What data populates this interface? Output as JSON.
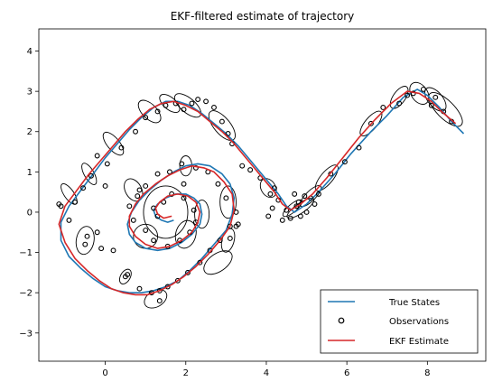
{
  "chart_data": {
    "type": "line",
    "title": "EKF-filtered estimate of trajectory",
    "xlabel": "",
    "ylabel": "",
    "xlim": [
      -1.65,
      9.45
    ],
    "ylim": [
      -3.7,
      4.55
    ],
    "xticks": [
      0,
      2,
      4,
      6,
      8
    ],
    "yticks": [
      -3,
      -2,
      -1,
      0,
      1,
      2,
      3,
      4
    ],
    "grid": false,
    "legend_position": "lower-right",
    "series": [
      {
        "name": "True States",
        "kind": "line",
        "color": "#1f77b4",
        "x": [
          8.9,
          8.6,
          8.3,
          8.0,
          7.75,
          7.4,
          7.0,
          6.6,
          6.1,
          5.7,
          5.3,
          5.0,
          4.7,
          4.5,
          4.3,
          4.05,
          3.8,
          3.55,
          3.3,
          3.0,
          2.7,
          2.4,
          2.1,
          1.8,
          1.5,
          1.2,
          0.9,
          0.6,
          0.3,
          0.0,
          -0.3,
          -0.6,
          -0.9,
          -1.1,
          -1.1,
          -0.9,
          -0.6,
          -0.3,
          0.0,
          0.3,
          0.6,
          0.9,
          1.2,
          1.5,
          1.8,
          2.1,
          2.4,
          2.7,
          3.0,
          3.15,
          3.2,
          3.1,
          2.9,
          2.6,
          2.3,
          2.0,
          1.7,
          1.4,
          1.1,
          0.85,
          0.65,
          0.55,
          0.6,
          0.75,
          1.0,
          1.3,
          1.6,
          1.9,
          2.15,
          2.35,
          2.4,
          2.35,
          2.2,
          2.0,
          1.75,
          1.5,
          1.3,
          1.2,
          1.25,
          1.4,
          1.55,
          1.7
        ],
        "y": [
          1.95,
          2.25,
          2.6,
          2.9,
          3.05,
          2.85,
          2.4,
          2.0,
          1.45,
          0.95,
          0.5,
          0.2,
          0.0,
          0.15,
          0.45,
          0.75,
          1.05,
          1.35,
          1.65,
          1.95,
          2.2,
          2.45,
          2.65,
          2.75,
          2.75,
          2.6,
          2.35,
          2.05,
          1.7,
          1.35,
          0.95,
          0.55,
          0.15,
          -0.25,
          -0.7,
          -1.1,
          -1.4,
          -1.65,
          -1.85,
          -1.95,
          -2.0,
          -2.0,
          -1.95,
          -1.85,
          -1.7,
          -1.45,
          -1.15,
          -0.8,
          -0.45,
          -0.05,
          0.35,
          0.7,
          0.95,
          1.15,
          1.2,
          1.15,
          1.0,
          0.8,
          0.55,
          0.3,
          0.0,
          -0.3,
          -0.55,
          -0.75,
          -0.9,
          -0.95,
          -0.9,
          -0.75,
          -0.55,
          -0.3,
          -0.05,
          0.2,
          0.35,
          0.45,
          0.45,
          0.35,
          0.2,
          0.05,
          -0.1,
          -0.2,
          -0.25,
          -0.2
        ]
      },
      {
        "name": "Observations",
        "kind": "scatter",
        "color": "#000000",
        "x": [
          8.6,
          8.2,
          8.4,
          8.1,
          7.9,
          7.65,
          7.5,
          7.3,
          6.9,
          6.6,
          6.3,
          5.95,
          5.6,
          5.3,
          5.1,
          5.2,
          5.0,
          4.85,
          4.75,
          4.6,
          4.5,
          4.4,
          4.3,
          4.15,
          4.05,
          4.2,
          4.1,
          3.85,
          3.6,
          3.4,
          3.15,
          3.05,
          2.9,
          2.7,
          2.5,
          2.3,
          2.15,
          1.95,
          1.75,
          1.5,
          1.3,
          1.0,
          0.75,
          0.4,
          0.05,
          -0.2,
          -0.35,
          -0.55,
          -0.75,
          -0.9,
          -1.1,
          -1.15,
          -0.45,
          -0.5,
          -0.1,
          0.2,
          0.5,
          0.55,
          0.85,
          1.15,
          1.35,
          1.55,
          1.8,
          2.05,
          2.35,
          2.6,
          2.85,
          3.1,
          3.25,
          3.0,
          2.8,
          2.55,
          2.25,
          1.9,
          1.6,
          1.3,
          1.0,
          0.8,
          0.6,
          0.7,
          1.0,
          1.2,
          1.55,
          1.85,
          2.1,
          2.25,
          2.2,
          1.95,
          1.65,
          1.45,
          1.2,
          1.3,
          3.3,
          3.25,
          4.8,
          4.7,
          4.95,
          0.85,
          1.95,
          3.1,
          0.0,
          -0.2,
          1.35
        ],
        "y": [
          2.25,
          2.85,
          2.5,
          2.65,
          3.05,
          2.95,
          2.9,
          2.7,
          2.6,
          2.2,
          1.6,
          1.25,
          0.95,
          0.45,
          0.35,
          0.2,
          0.0,
          -0.1,
          0.15,
          -0.15,
          0.05,
          -0.2,
          0.3,
          0.1,
          -0.1,
          0.6,
          0.45,
          0.85,
          1.05,
          1.15,
          1.7,
          1.95,
          2.25,
          2.6,
          2.75,
          2.8,
          2.7,
          2.55,
          2.7,
          2.65,
          2.5,
          2.35,
          2.0,
          1.6,
          1.2,
          1.4,
          0.9,
          0.6,
          0.25,
          -0.2,
          0.15,
          0.2,
          -0.6,
          -0.8,
          -0.9,
          -0.95,
          -1.6,
          -1.55,
          -1.9,
          -2.0,
          -1.95,
          -1.85,
          -1.7,
          -1.5,
          -1.25,
          -0.95,
          -0.7,
          -0.35,
          0.0,
          0.35,
          0.7,
          1.0,
          1.1,
          1.2,
          1.0,
          0.95,
          0.65,
          0.4,
          0.15,
          -0.2,
          -0.45,
          -0.7,
          -0.85,
          -0.7,
          -0.5,
          -0.25,
          0.05,
          0.35,
          0.45,
          0.25,
          0.1,
          -0.1,
          -0.3,
          -0.35,
          0.25,
          0.45,
          0.4,
          0.55,
          0.7,
          -0.65,
          0.65,
          -0.5,
          -2.2
        ],
        "marker": "open-circle"
      },
      {
        "name": "EKF Estimate",
        "kind": "line",
        "color": "#d62728",
        "x": [
          8.7,
          8.35,
          8.1,
          7.8,
          7.5,
          7.1,
          6.7,
          6.3,
          5.9,
          5.5,
          5.15,
          4.85,
          4.6,
          4.4,
          4.2,
          3.95,
          3.7,
          3.45,
          3.2,
          2.9,
          2.6,
          2.3,
          2.0,
          1.7,
          1.4,
          1.1,
          0.8,
          0.5,
          0.2,
          -0.1,
          -0.4,
          -0.7,
          -1.0,
          -1.15,
          -1.0,
          -0.75,
          -0.45,
          -0.15,
          0.15,
          0.45,
          0.75,
          1.05,
          1.35,
          1.65,
          1.95,
          2.25,
          2.55,
          2.85,
          3.1,
          3.2,
          3.15,
          2.95,
          2.7,
          2.45,
          2.15,
          1.85,
          1.55,
          1.25,
          0.95,
          0.75,
          0.6,
          0.6,
          0.75,
          1.0,
          1.3,
          1.6,
          1.9,
          2.15,
          2.3,
          2.35,
          2.25,
          2.05,
          1.8,
          1.55,
          1.35,
          1.25,
          1.3,
          1.45,
          1.65
        ],
        "y": [
          2.2,
          2.5,
          2.75,
          2.95,
          3.0,
          2.7,
          2.3,
          1.85,
          1.35,
          0.85,
          0.45,
          0.2,
          0.05,
          0.2,
          0.5,
          0.8,
          1.1,
          1.4,
          1.7,
          2.0,
          2.25,
          2.5,
          2.65,
          2.75,
          2.7,
          2.55,
          2.3,
          2.0,
          1.65,
          1.3,
          0.95,
          0.55,
          0.15,
          -0.3,
          -0.75,
          -1.15,
          -1.45,
          -1.7,
          -1.9,
          -2.0,
          -2.05,
          -2.05,
          -1.95,
          -1.8,
          -1.6,
          -1.35,
          -1.05,
          -0.7,
          -0.35,
          0.05,
          0.45,
          0.75,
          1.0,
          1.1,
          1.15,
          1.05,
          0.9,
          0.7,
          0.45,
          0.2,
          -0.1,
          -0.35,
          -0.6,
          -0.8,
          -0.9,
          -0.85,
          -0.7,
          -0.5,
          -0.25,
          0.0,
          0.25,
          0.4,
          0.45,
          0.4,
          0.25,
          0.1,
          -0.05,
          -0.15,
          -0.1
        ]
      }
    ],
    "covariance_ellipses": [
      {
        "cx": 8.45,
        "cy": 2.55,
        "rx": 0.22,
        "ry": 0.55,
        "angle_deg": -45
      },
      {
        "cx": 8.2,
        "cy": 2.8,
        "rx": 0.18,
        "ry": 0.35,
        "angle_deg": -40
      },
      {
        "cx": 7.8,
        "cy": 2.95,
        "rx": 0.2,
        "ry": 0.3,
        "angle_deg": -35
      },
      {
        "cx": 7.3,
        "cy": 2.85,
        "rx": 0.15,
        "ry": 0.32,
        "angle_deg": 35
      },
      {
        "cx": 6.6,
        "cy": 2.2,
        "rx": 0.15,
        "ry": 0.38,
        "angle_deg": 40
      },
      {
        "cx": 5.5,
        "cy": 0.85,
        "rx": 0.15,
        "ry": 0.4,
        "angle_deg": 40
      },
      {
        "cx": 5.1,
        "cy": 0.4,
        "rx": 0.12,
        "ry": 0.35,
        "angle_deg": 45
      },
      {
        "cx": 4.85,
        "cy": 0.1,
        "rx": 0.12,
        "ry": 0.4,
        "angle_deg": 55
      },
      {
        "cx": 4.65,
        "cy": 0.1,
        "rx": 0.1,
        "ry": 0.3,
        "angle_deg": 50
      },
      {
        "cx": 4.05,
        "cy": 0.6,
        "rx": 0.18,
        "ry": 0.25,
        "angle_deg": -30
      },
      {
        "cx": 2.9,
        "cy": 2.15,
        "rx": 0.2,
        "ry": 0.45,
        "angle_deg": -40
      },
      {
        "cx": 2.05,
        "cy": 2.65,
        "rx": 0.18,
        "ry": 0.4,
        "angle_deg": -50
      },
      {
        "cx": 1.6,
        "cy": 2.7,
        "rx": 0.15,
        "ry": 0.3,
        "angle_deg": -50
      },
      {
        "cx": 1.1,
        "cy": 2.5,
        "rx": 0.18,
        "ry": 0.35,
        "angle_deg": -45
      },
      {
        "cx": 0.2,
        "cy": 1.7,
        "rx": 0.15,
        "ry": 0.35,
        "angle_deg": -40
      },
      {
        "cx": -0.4,
        "cy": 0.95,
        "rx": 0.12,
        "ry": 0.3,
        "angle_deg": -30
      },
      {
        "cx": -0.9,
        "cy": 0.45,
        "rx": 0.12,
        "ry": 0.3,
        "angle_deg": -35
      },
      {
        "cx": -0.5,
        "cy": -0.7,
        "rx": 0.22,
        "ry": 0.35,
        "angle_deg": 10
      },
      {
        "cx": 0.5,
        "cy": -1.6,
        "rx": 0.12,
        "ry": 0.2,
        "angle_deg": 30
      },
      {
        "cx": 1.25,
        "cy": -2.15,
        "rx": 0.2,
        "ry": 0.3,
        "angle_deg": 60
      },
      {
        "cx": 2.8,
        "cy": -1.25,
        "rx": 0.22,
        "ry": 0.4,
        "angle_deg": 55
      },
      {
        "cx": 3.05,
        "cy": -0.7,
        "rx": 0.15,
        "ry": 0.3,
        "angle_deg": 15
      },
      {
        "cx": 3.05,
        "cy": 0.25,
        "rx": 0.2,
        "ry": 0.4,
        "angle_deg": 0
      },
      {
        "cx": 2.0,
        "cy": 1.15,
        "rx": 0.15,
        "ry": 0.25,
        "angle_deg": 0
      },
      {
        "cx": 1.5,
        "cy": 0.0,
        "rx": 0.55,
        "ry": 0.65,
        "angle_deg": 0
      },
      {
        "cx": 0.7,
        "cy": 0.55,
        "rx": 0.2,
        "ry": 0.3,
        "angle_deg": -30
      },
      {
        "cx": 1.0,
        "cy": -0.6,
        "rx": 0.3,
        "ry": 0.3,
        "angle_deg": 0
      },
      {
        "cx": 2.0,
        "cy": -0.55,
        "rx": 0.25,
        "ry": 0.35,
        "angle_deg": 15
      },
      {
        "cx": 2.4,
        "cy": -0.05,
        "rx": 0.18,
        "ry": 0.35,
        "angle_deg": 0
      }
    ]
  }
}
